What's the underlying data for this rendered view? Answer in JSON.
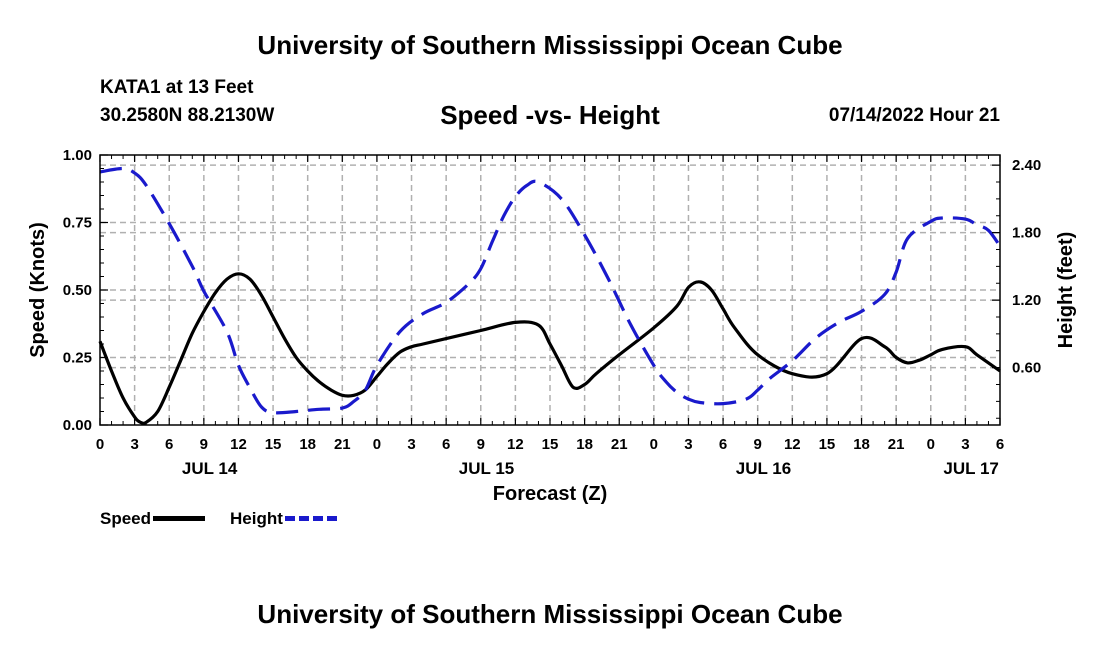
{
  "header": {
    "title": "University of Southern Mississippi Ocean Cube",
    "station": "KATA1 at 13 Feet",
    "coords": "30.2580N  88.2130W",
    "subtitle": "Speed -vs- Height",
    "timestamp": "07/14/2022 Hour 21"
  },
  "footer": {
    "title": "University of Southern Mississippi Ocean Cube"
  },
  "legend": {
    "speed_label": "Speed",
    "height_label": "Height"
  },
  "colors": {
    "speed": "#000000",
    "height": "#1a1acc",
    "grid": "#b0b0b0"
  },
  "chart_data": {
    "type": "line",
    "xlabel": "Forecast (Z)",
    "ylabel_left": "Speed (Knots)",
    "ylabel_right": "Height (feet)",
    "x_unit": "hours since JUL 14 00Z",
    "xlim": [
      0,
      78
    ],
    "ylim_left": [
      0,
      1.0
    ],
    "ylim_right": [
      0.09,
      2.49
    ],
    "x_ticks": [
      0,
      3,
      6,
      9,
      12,
      15,
      18,
      21,
      24,
      27,
      30,
      33,
      36,
      39,
      42,
      45,
      48,
      51,
      54,
      57,
      60,
      63,
      66,
      69,
      72,
      75,
      78
    ],
    "x_tick_labels": [
      "0",
      "3",
      "6",
      "9",
      "12",
      "15",
      "18",
      "21",
      "0",
      "3",
      "6",
      "9",
      "12",
      "15",
      "18",
      "21",
      "0",
      "3",
      "6",
      "9",
      "12",
      "15",
      "18",
      "21",
      "0",
      "3",
      "6"
    ],
    "date_labels": [
      {
        "x": 9.5,
        "label": "JUL 14"
      },
      {
        "x": 33.5,
        "label": "JUL 15"
      },
      {
        "x": 57.5,
        "label": "JUL 16"
      },
      {
        "x": 75.5,
        "label": "JUL 17"
      }
    ],
    "y_left_ticks": [
      0.0,
      0.25,
      0.5,
      0.75,
      1.0
    ],
    "y_left_tick_labels": [
      "0.00",
      "0.25",
      "0.50",
      "0.75",
      "1.00"
    ],
    "y_right_ticks": [
      0.6,
      1.2,
      1.8,
      2.4
    ],
    "y_right_tick_labels": [
      "0.60",
      "1.20",
      "1.80",
      "2.40"
    ],
    "series": [
      {
        "name": "Speed",
        "axis": "left",
        "style": "solid",
        "x": [
          0,
          1,
          2,
          3,
          3.5,
          4,
          5,
          6,
          7,
          8,
          9,
          10,
          11,
          12,
          13,
          14,
          15,
          16,
          17,
          18,
          19,
          20,
          21,
          22,
          23,
          24,
          25,
          26,
          27,
          28,
          30,
          33,
          36,
          38,
          39,
          40,
          41,
          42,
          43,
          45,
          48,
          50,
          51,
          52,
          53,
          54,
          55,
          57,
          60,
          63,
          66,
          68,
          69,
          70,
          71,
          72,
          73,
          75,
          76,
          78
        ],
        "values": [
          0.31,
          0.2,
          0.1,
          0.03,
          0.01,
          0.01,
          0.05,
          0.14,
          0.24,
          0.34,
          0.42,
          0.49,
          0.54,
          0.56,
          0.54,
          0.48,
          0.4,
          0.32,
          0.25,
          0.2,
          0.16,
          0.13,
          0.11,
          0.11,
          0.13,
          0.18,
          0.23,
          0.27,
          0.29,
          0.3,
          0.32,
          0.35,
          0.38,
          0.37,
          0.3,
          0.22,
          0.14,
          0.15,
          0.19,
          0.26,
          0.36,
          0.44,
          0.51,
          0.53,
          0.5,
          0.43,
          0.36,
          0.26,
          0.19,
          0.19,
          0.32,
          0.29,
          0.25,
          0.23,
          0.24,
          0.26,
          0.28,
          0.29,
          0.26,
          0.2
        ]
      },
      {
        "name": "Height",
        "axis": "right",
        "style": "dashed",
        "x": [
          0,
          2,
          3,
          4,
          6,
          8,
          9,
          11,
          12,
          13,
          14,
          15,
          17,
          19,
          21,
          22,
          23,
          24,
          26,
          28,
          30,
          32,
          33,
          34,
          35,
          36,
          37,
          38,
          40,
          42,
          44,
          46,
          48,
          49,
          50,
          51,
          52,
          54,
          56,
          57,
          58,
          60,
          62,
          64,
          66,
          68,
          69,
          70,
          72,
          73,
          75,
          76,
          77,
          78
        ],
        "values": [
          2.34,
          2.37,
          2.33,
          2.22,
          1.88,
          1.5,
          1.28,
          0.92,
          0.62,
          0.42,
          0.25,
          0.2,
          0.21,
          0.23,
          0.24,
          0.3,
          0.4,
          0.62,
          0.92,
          1.08,
          1.18,
          1.35,
          1.48,
          1.72,
          1.95,
          2.12,
          2.22,
          2.25,
          2.1,
          1.78,
          1.4,
          0.98,
          0.62,
          0.48,
          0.38,
          0.32,
          0.29,
          0.28,
          0.32,
          0.4,
          0.5,
          0.66,
          0.86,
          1.0,
          1.1,
          1.25,
          1.45,
          1.75,
          1.9,
          1.93,
          1.92,
          1.87,
          1.82,
          1.68
        ]
      }
    ]
  }
}
